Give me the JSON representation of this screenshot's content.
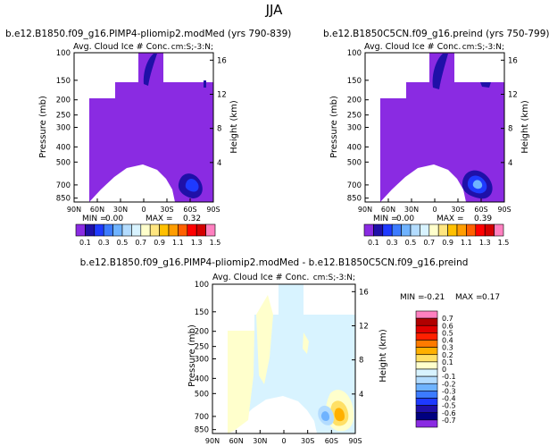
{
  "header": {
    "season": "JJA"
  },
  "chart_data": [
    {
      "type": "heatmap",
      "title": "b.e12.B1850.f09_g16.PIMP4-pliomip2.modMed  (yrs 790-839)",
      "left_label": "Avg. Cloud Ice # Conc.",
      "right_label": "cm:S;-3:N;",
      "ylabel": "Pressure (mb)",
      "y2label": "Height (km)",
      "xticks": [
        "90N",
        "60N",
        "30N",
        "0",
        "30S",
        "60S",
        "90S"
      ],
      "yticks": [
        "100",
        "150",
        "200",
        "250",
        "300",
        "400",
        "500",
        "700",
        "850"
      ],
      "y2ticks": [
        "16",
        "12",
        "8",
        "4"
      ],
      "stats": {
        "min_label": "MIN =",
        "min": "0.00",
        "max_label": "MAX =",
        "max": "0.32"
      },
      "colorbar_labels": [
        "0.1",
        "0.3",
        "0.5",
        "0.7",
        "0.9",
        "1.1",
        "1.3",
        "1.5"
      ],
      "colorbar_colors": [
        "#8a2be2",
        "#1f10a8",
        "#1e3aff",
        "#3c7bff",
        "#6fb3ff",
        "#b3dcff",
        "#d8f3ff",
        "#ffffcc",
        "#ffe680",
        "#ffc000",
        "#ff9d00",
        "#ff6000",
        "#ff0000",
        "#d40000",
        "#ff80c0"
      ]
    },
    {
      "type": "heatmap",
      "title": "b.e12.B1850C5CN.f09_g16.preind  (yrs 750-799)",
      "left_label": "Avg. Cloud Ice # Conc.",
      "right_label": "cm:S;-3:N;",
      "ylabel": "Pressure (mb)",
      "y2label": "Height (km)",
      "xticks": [
        "90N",
        "60N",
        "30N",
        "0",
        "30S",
        "60S",
        "90S"
      ],
      "yticks": [
        "100",
        "150",
        "200",
        "250",
        "300",
        "400",
        "500",
        "700",
        "850"
      ],
      "y2ticks": [
        "16",
        "12",
        "8",
        "4"
      ],
      "stats": {
        "min_label": "MIN =",
        "min": "0.00",
        "max_label": "MAX =",
        "max": "0.39"
      },
      "colorbar_labels": [
        "0.1",
        "0.3",
        "0.5",
        "0.7",
        "0.9",
        "1.1",
        "1.3",
        "1.5"
      ],
      "colorbar_colors": [
        "#8a2be2",
        "#1f10a8",
        "#1e3aff",
        "#3c7bff",
        "#6fb3ff",
        "#b3dcff",
        "#d8f3ff",
        "#ffffcc",
        "#ffe680",
        "#ffc000",
        "#ff9d00",
        "#ff6000",
        "#ff0000",
        "#d40000",
        "#ff80c0"
      ]
    },
    {
      "type": "heatmap",
      "title": "b.e12.B1850.f09_g16.PIMP4-pliomip2.modMed - b.e12.B1850C5CN.f09_g16.preind",
      "left_label": "Avg. Cloud Ice # Conc.",
      "right_label": "cm:S;-3:N;",
      "ylabel": "Pressure (mb)",
      "y2label": "Height (km)",
      "xticks": [
        "90N",
        "60N",
        "30N",
        "0",
        "30S",
        "60S",
        "90S"
      ],
      "yticks": [
        "100",
        "150",
        "200",
        "250",
        "300",
        "400",
        "500",
        "700",
        "850"
      ],
      "y2ticks": [
        "16",
        "12",
        "8",
        "4"
      ],
      "stats": {
        "min_label": "MIN =",
        "min": "-0.21",
        "max_label": "MAX =",
        "max": "0.17"
      },
      "colorbar_labels": [
        "0.7",
        "0.6",
        "0.5",
        "0.4",
        "0.3",
        "0.2",
        "0.1",
        "0",
        "-0.1",
        "-0.2",
        "-0.3",
        "-0.4",
        "-0.5",
        "-0.6",
        "-0.7"
      ],
      "colorbar_colors": [
        "#ff80c0",
        "#b00000",
        "#e00000",
        "#ff2000",
        "#ff7a00",
        "#ffb000",
        "#ffe066",
        "#ffffcc",
        "#d8f3ff",
        "#b3dcff",
        "#6fb3ff",
        "#3c7bff",
        "#1e3aff",
        "#1f10a8",
        "#000080",
        "#8a2be2"
      ]
    }
  ]
}
